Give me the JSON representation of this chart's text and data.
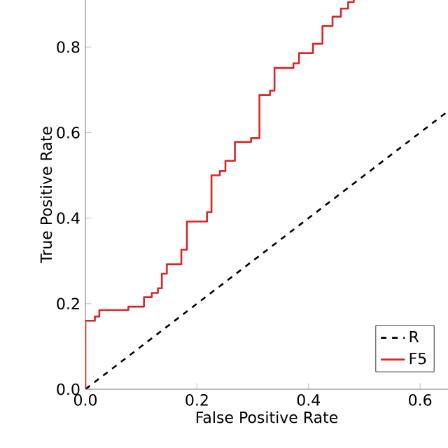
{
  "chart_data": {
    "type": "step",
    "xlabel": "False Positive Rate",
    "ylabel": "True Positive Rate",
    "xlim": [
      0,
      0.65
    ],
    "ylim": [
      0,
      0.91
    ],
    "xticks": [
      {
        "value": 0,
        "label": "0.0"
      },
      {
        "value": 0.2,
        "label": "0.2"
      },
      {
        "value": 0.4,
        "label": "0.4"
      },
      {
        "value": 0.6,
        "label": "0.6"
      }
    ],
    "yticks": [
      {
        "value": 0,
        "label": "0.0"
      },
      {
        "value": 0.2,
        "label": "0.2"
      },
      {
        "value": 0.4,
        "label": "0.4"
      },
      {
        "value": 0.6,
        "label": "0.6"
      },
      {
        "value": 0.8,
        "label": "0.8"
      }
    ],
    "grid": false,
    "legend": "bottom right",
    "series": [
      {
        "name": "R",
        "type": "line",
        "line_style": "dashed",
        "color": "#000000",
        "x": [
          0,
          0.65
        ],
        "values": [
          0,
          0.65
        ]
      },
      {
        "name": "F5",
        "line_style": "solid",
        "color": "#d62728",
        "x": [
          0,
          0,
          0.017,
          0.025,
          0.077,
          0.105,
          0.119,
          0.13,
          0.137,
          0.146,
          0.172,
          0.182,
          0.218,
          0.226,
          0.241,
          0.251,
          0.268,
          0.297,
          0.312,
          0.331,
          0.339,
          0.373,
          0.383,
          0.408,
          0.425,
          0.443,
          0.458,
          0.471,
          0.481
        ],
        "values": [
          0,
          0.16,
          0.17,
          0.185,
          0.193,
          0.215,
          0.225,
          0.236,
          0.27,
          0.292,
          0.326,
          0.392,
          0.414,
          0.5,
          0.51,
          0.534,
          0.578,
          0.587,
          0.688,
          0.698,
          0.751,
          0.762,
          0.786,
          0.808,
          0.849,
          0.871,
          0.89,
          0.905,
          0.91
        ]
      }
    ]
  }
}
